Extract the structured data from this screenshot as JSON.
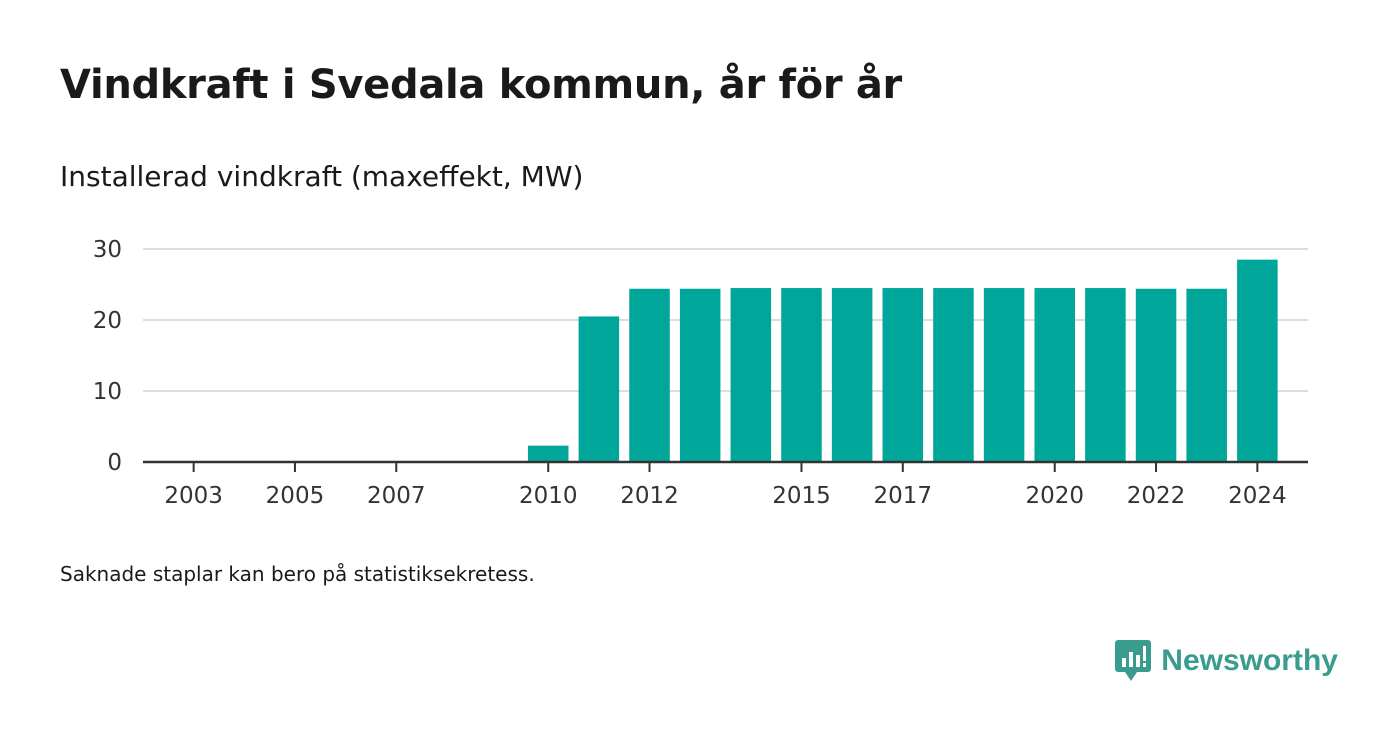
{
  "header": {
    "title": "Vindkraft i Svedala kommun, år för år",
    "subtitle": "Installerad vindkraft (maxeffekt, MW)"
  },
  "footer": {
    "note": "Saknade staplar kan bero på statistiksekretess.",
    "brand": "Newsworthy",
    "brand_icon": "bar-chart-speech-bubble-icon"
  },
  "colors": {
    "bar": "#00a69a",
    "grid": "#dddddd",
    "axis": "#333333",
    "brand": "#3a9b8f"
  },
  "chart_data": {
    "type": "bar",
    "categories": [
      2010,
      2011,
      2012,
      2013,
      2014,
      2015,
      2016,
      2017,
      2018,
      2019,
      2020,
      2021,
      2022,
      2023,
      2024
    ],
    "values": [
      2.3,
      20.5,
      24.4,
      24.4,
      24.5,
      24.5,
      24.5,
      24.5,
      24.5,
      24.5,
      24.5,
      24.5,
      24.4,
      24.4,
      28.5
    ],
    "x_range": [
      2002,
      2025
    ],
    "x_ticks": [
      "2003",
      "2005",
      "2007",
      "2010",
      "2012",
      "2015",
      "2017",
      "2020",
      "2022",
      "2024"
    ],
    "y_ticks": [
      "0",
      "10",
      "20",
      "30"
    ],
    "ylim": [
      0,
      30
    ],
    "grid": true,
    "legend": "none",
    "title": "",
    "xlabel": "",
    "ylabel": ""
  }
}
